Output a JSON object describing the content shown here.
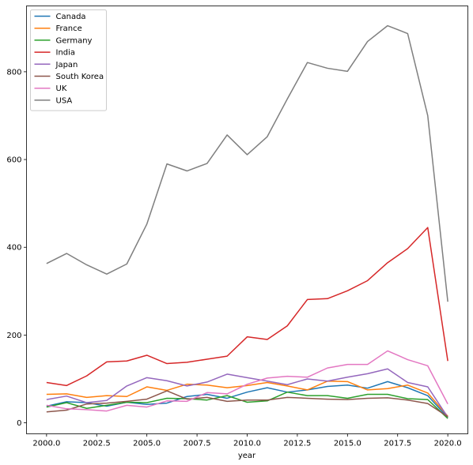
{
  "chart_data": {
    "type": "line",
    "title": "",
    "xlabel": "year",
    "ylabel": "",
    "xlim": [
      1999,
      2021
    ],
    "ylim": [
      -25,
      950
    ],
    "x": [
      2000,
      2001,
      2002,
      2003,
      2004,
      2005,
      2006,
      2007,
      2008,
      2009,
      2010,
      2011,
      2012,
      2013,
      2014,
      2015,
      2016,
      2017,
      2018,
      2019,
      2020
    ],
    "x_ticks": [
      2000,
      2002.5,
      2005,
      2007.5,
      2010,
      2012.5,
      2015,
      2017.5,
      2020
    ],
    "x_tick_labels": [
      "2000.0",
      "2002.5",
      "2005.0",
      "2007.5",
      "2010.0",
      "2012.5",
      "2015.0",
      "2017.5",
      "2020.0"
    ],
    "y_ticks": [
      0,
      200,
      400,
      600,
      800
    ],
    "y_tick_labels": [
      "0",
      "200",
      "400",
      "600",
      "800"
    ],
    "grid": false,
    "legend_position": "top-left",
    "series": [
      {
        "name": "Canada",
        "color": "#1f77b4",
        "values": [
          38,
          48,
          46,
          38,
          47,
          42,
          45,
          60,
          65,
          56,
          70,
          80,
          70,
          75,
          83,
          86,
          79,
          94,
          80,
          62,
          12
        ]
      },
      {
        "name": "France",
        "color": "#ff7f0e",
        "values": [
          65,
          66,
          58,
          62,
          60,
          82,
          74,
          88,
          86,
          80,
          85,
          92,
          84,
          75,
          95,
          94,
          75,
          78,
          86,
          68,
          15
        ]
      },
      {
        "name": "Germany",
        "color": "#2ca02c",
        "values": [
          36,
          46,
          33,
          40,
          47,
          46,
          56,
          55,
          52,
          62,
          47,
          50,
          70,
          62,
          62,
          56,
          65,
          65,
          55,
          53,
          10
        ]
      },
      {
        "name": "India",
        "color": "#d62728",
        "values": [
          92,
          85,
          107,
          139,
          141,
          154,
          135,
          138,
          145,
          152,
          196,
          190,
          221,
          281,
          283,
          301,
          324,
          365,
          397,
          445,
          141
        ]
      },
      {
        "name": "Japan",
        "color": "#9467bd",
        "values": [
          53,
          61,
          46,
          51,
          84,
          103,
          96,
          84,
          93,
          111,
          103,
          95,
          87,
          100,
          95,
          104,
          112,
          123,
          92,
          82,
          13
        ]
      },
      {
        "name": "South Korea",
        "color": "#8c564b",
        "values": [
          25,
          29,
          43,
          45,
          49,
          54,
          73,
          54,
          58,
          49,
          52,
          52,
          58,
          56,
          54,
          53,
          56,
          57,
          52,
          44,
          14
        ]
      },
      {
        "name": "UK",
        "color": "#e377c2",
        "values": [
          40,
          32,
          30,
          27,
          40,
          36,
          50,
          49,
          69,
          66,
          88,
          102,
          106,
          104,
          125,
          133,
          133,
          164,
          144,
          130,
          43
        ]
      },
      {
        "name": "USA",
        "color": "#7f7f7f",
        "values": [
          363,
          386,
          360,
          339,
          362,
          453,
          590,
          574,
          591,
          656,
          611,
          652,
          738,
          821,
          808,
          801,
          869,
          905,
          887,
          700,
          276
        ]
      }
    ]
  }
}
